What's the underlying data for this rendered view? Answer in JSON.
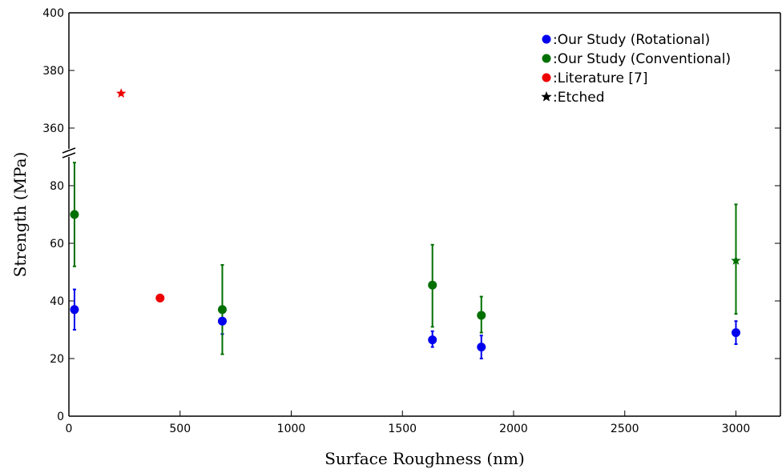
{
  "chart_data": {
    "type": "scatter",
    "xlabel": "Surface Roughness (nm)",
    "ylabel": "Strength (MPa)",
    "xlim": [
      0,
      3200
    ],
    "ylim_lower": [
      0,
      90
    ],
    "ylim_upper": [
      348,
      400
    ],
    "axis_break": true,
    "x_ticks": [
      0,
      500,
      1000,
      1500,
      2000,
      2500,
      3000
    ],
    "y_ticks_lower": [
      0,
      20,
      40,
      60,
      80
    ],
    "y_ticks_upper": [
      360,
      380,
      400
    ],
    "grid": false,
    "legend_position": "top-right",
    "legend": [
      {
        "label": ":Our Study (Rotational)",
        "color": "#0000ee",
        "marker": "circle"
      },
      {
        "label": ":Our Study (Conventional)",
        "color": "#007000",
        "marker": "circle"
      },
      {
        "label": ":Literature [7]",
        "color": "#ee0000",
        "marker": "circle"
      },
      {
        "label": ":Etched",
        "color": "#000000",
        "marker": "star"
      }
    ],
    "series": [
      {
        "color": "#0000ee",
        "points": [
          {
            "x": 25,
            "y": 37,
            "err": [
              30,
              44
            ],
            "marker": "circle"
          },
          {
            "x": 690,
            "y": 33,
            "err": [
              28.5,
              37
            ],
            "marker": "circle"
          },
          {
            "x": 1635,
            "y": 26.5,
            "err": [
              24,
              29.5
            ],
            "marker": "circle"
          },
          {
            "x": 1855,
            "y": 24,
            "err": [
              20,
              28
            ],
            "marker": "circle"
          },
          {
            "x": 3000,
            "y": 29,
            "err": [
              25,
              33
            ],
            "marker": "circle"
          }
        ]
      },
      {
        "color": "#007000",
        "points": [
          {
            "x": 25,
            "y": 70,
            "err": [
              52,
              88
            ],
            "marker": "circle"
          },
          {
            "x": 690,
            "y": 37,
            "err": [
              21.5,
              52.5
            ],
            "marker": "circle"
          },
          {
            "x": 1635,
            "y": 45.5,
            "err": [
              31,
              59.5
            ],
            "marker": "circle"
          },
          {
            "x": 1855,
            "y": 35,
            "err": [
              29,
              41.5
            ],
            "marker": "circle"
          },
          {
            "x": 3000,
            "y": 54,
            "err": [
              35.5,
              73.5
            ],
            "marker": "star"
          }
        ]
      },
      {
        "color": "#ee0000",
        "points": [
          {
            "x": 410,
            "y": 41,
            "marker": "circle"
          },
          {
            "x": 235,
            "y": 372,
            "marker": "star"
          }
        ]
      }
    ]
  }
}
